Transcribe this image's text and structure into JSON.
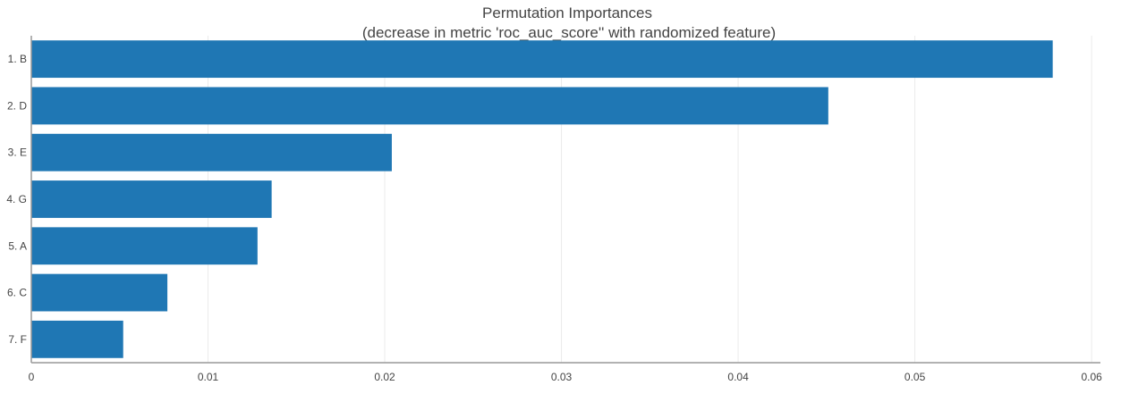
{
  "chart_data": {
    "type": "bar",
    "orientation": "horizontal",
    "title": "Permutation Importances",
    "subtitle": "(decrease in metric 'roc_auc_score'' with randomized feature)",
    "xlabel": "",
    "ylabel": "",
    "categories": [
      "1. B",
      "2. D",
      "3. E",
      "4. G",
      "5. A",
      "6. C",
      "7. F"
    ],
    "values": [
      0.0578,
      0.0451,
      0.0204,
      0.0136,
      0.0128,
      0.0077,
      0.0052
    ],
    "xlim": [
      0,
      0.0605
    ],
    "xticks": [
      0,
      0.01,
      0.02,
      0.03,
      0.04,
      0.05,
      0.06
    ],
    "xtick_labels": [
      "0",
      "0.01",
      "0.02",
      "0.03",
      "0.04",
      "0.05",
      "0.06"
    ],
    "grid": "vertical",
    "legend": "none",
    "colors": {
      "bar": "#1f77b4",
      "grid": "#ebebeb",
      "axis": "#999999",
      "text": "#444444"
    }
  }
}
